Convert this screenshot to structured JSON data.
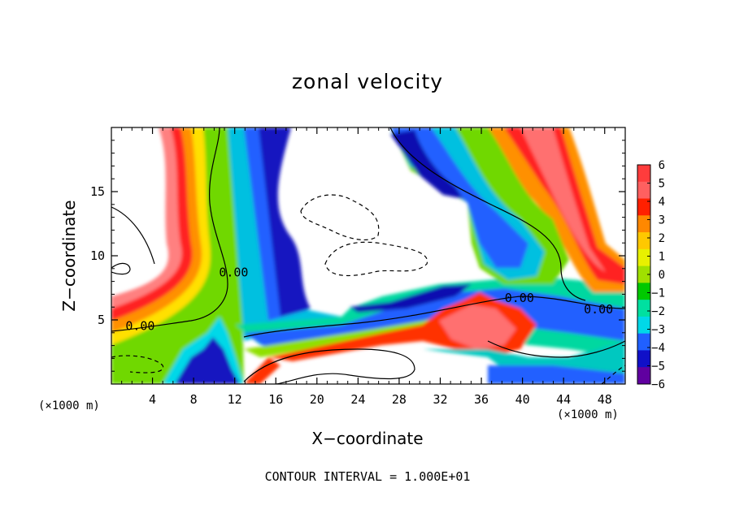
{
  "chart_data": {
    "type": "heatmap",
    "title": "zonal velocity",
    "xlabel": "X−coordinate",
    "ylabel": "Z−coordinate",
    "x_unit": "(×1000 m)",
    "xlim": [
      0,
      50
    ],
    "ylim": [
      0,
      20
    ],
    "x_ticks": [
      4,
      8,
      12,
      16,
      20,
      24,
      28,
      32,
      36,
      40,
      44,
      48
    ],
    "y_ticks": [
      5,
      10,
      15
    ],
    "colorbar": {
      "ticks": [
        6,
        5,
        4,
        3,
        2,
        1,
        0,
        -1,
        -2,
        -3,
        -4,
        -5,
        -6
      ],
      "labels": [
        "6",
        "5",
        "4",
        "3",
        "2",
        "1",
        "0",
        "−1",
        "−2",
        "−3",
        "−4",
        "−5",
        "−6"
      ],
      "colors": [
        "#ff3c3c",
        "#ff6060",
        "#ff2000",
        "#ff8800",
        "#ffc800",
        "#e8f000",
        "#a0e000",
        "#00c800",
        "#00e0a0",
        "#00d8e8",
        "#2060ff",
        "#1010c8",
        "#6000a0"
      ]
    },
    "contour_labels": [
      {
        "text": "0.00",
        "x": 2.8,
        "y": 4.2
      },
      {
        "text": "0.00",
        "x": 11.9,
        "y": 8.4
      },
      {
        "text": "0.00",
        "x": 39.7,
        "y": 6.4
      },
      {
        "text": "0.00",
        "x": 47.4,
        "y": 5.5
      }
    ],
    "grid": false,
    "legend": "colorbar-right"
  },
  "footer": "CONTOUR INTERVAL = 1.000E+01"
}
